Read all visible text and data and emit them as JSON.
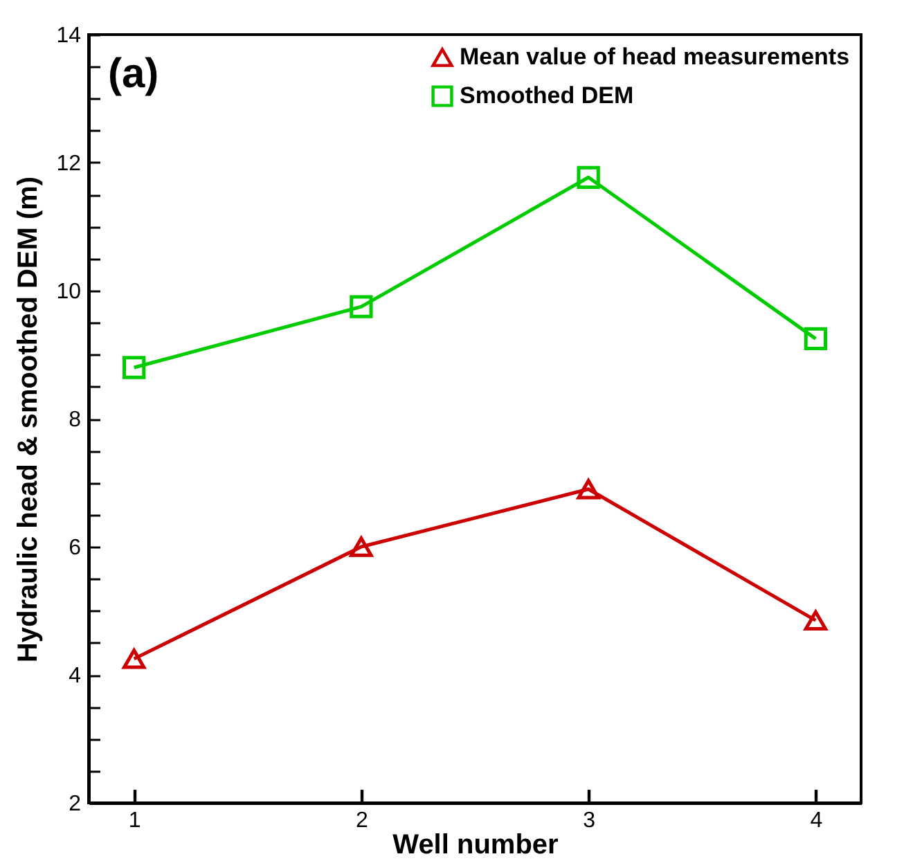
{
  "chart_data": {
    "type": "line",
    "xlabel": "Well number",
    "ylabel": "Hydraulic head & smoothed DEM (m)",
    "annotations": [
      "(a)"
    ],
    "x": [
      1,
      2,
      3,
      4
    ],
    "series": [
      {
        "name": "Mean value of head measurements",
        "color": "#cc0000",
        "marker": "triangle",
        "values": [
          4.25,
          6.0,
          6.9,
          4.85
        ]
      },
      {
        "name": "Smoothed DEM",
        "color": "#00cc00",
        "marker": "square",
        "values": [
          8.8,
          9.75,
          11.77,
          9.25
        ]
      }
    ],
    "xlim": [
      0.8,
      4.2
    ],
    "xticks": [
      1,
      2,
      3,
      4
    ],
    "ylim": [
      2,
      14
    ],
    "yticks": [
      2,
      {
        "value": 2.5,
        "label": null
      },
      {
        "value": 3,
        "label": null
      },
      {
        "value": 3.5,
        "label": null
      },
      4,
      {
        "value": 4.5,
        "label": null
      },
      {
        "value": 5,
        "label": null
      },
      {
        "value": 5.5,
        "label": null
      },
      6,
      {
        "value": 6.5,
        "label": null
      },
      {
        "value": 7,
        "label": null
      },
      {
        "value": 7.5,
        "label": null
      },
      8,
      {
        "value": 8.5,
        "label": null
      },
      {
        "value": 9,
        "label": null
      },
      {
        "value": 9.5,
        "label": null
      },
      10,
      {
        "value": 10.5,
        "label": null
      },
      {
        "value": 11,
        "label": null
      },
      {
        "value": 11.5,
        "label": null
      },
      12,
      {
        "value": 12.5,
        "label": null
      },
      {
        "value": 13,
        "label": null
      },
      {
        "value": 13.5,
        "label": null
      },
      14
    ],
    "legend": "top right",
    "grid": false,
    "line_style": "solid"
  }
}
